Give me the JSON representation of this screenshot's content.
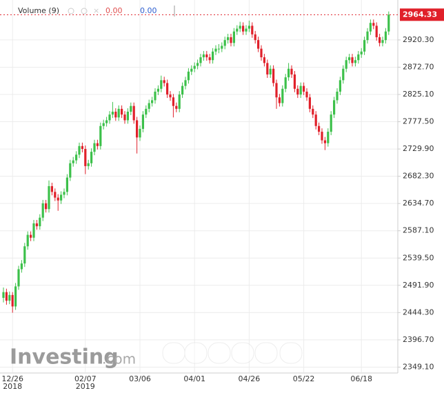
{
  "chart_data": {
    "type": "candlestick",
    "legend_label": "Volume (9)",
    "legend_values": [
      "0.00",
      "0.00"
    ],
    "legend_colors": [
      "#e05050",
      "#3060d0"
    ],
    "watermark": "Investing",
    "watermark_suffix": ".com",
    "up_color": "#3cc04a",
    "down_color": "#e0202a",
    "grid": true,
    "last_price": 2964.33,
    "ylim": [
      2340,
      2990
    ],
    "yticks": [
      {
        "value": 2349.1,
        "label": "2349.10"
      },
      {
        "value": 2396.7,
        "label": "2396.70"
      },
      {
        "value": 2444.3,
        "label": "2444.30"
      },
      {
        "value": 2491.9,
        "label": "2491.90"
      },
      {
        "value": 2539.5,
        "label": "2539.50"
      },
      {
        "value": 2587.1,
        "label": "2587.10"
      },
      {
        "value": 2634.7,
        "label": "2634.70"
      },
      {
        "value": 2682.3,
        "label": "2682.30"
      },
      {
        "value": 2729.9,
        "label": "2729.90"
      },
      {
        "value": 2777.5,
        "label": "2777.50"
      },
      {
        "value": 2825.1,
        "label": "2825.10"
      },
      {
        "value": 2872.7,
        "label": "2872.70"
      },
      {
        "value": 2920.3,
        "label": "2920.30"
      }
    ],
    "categories": [
      null,
      null,
      null,
      "12/26\n2018",
      null,
      null,
      null,
      null,
      null,
      null,
      null,
      null,
      null,
      null,
      null,
      null,
      null,
      null,
      null,
      null,
      null,
      null,
      null,
      null,
      null,
      null,
      null,
      "02/07\n2019",
      null,
      null,
      null,
      null,
      null,
      null,
      null,
      null,
      null,
      null,
      null,
      null,
      null,
      null,
      null,
      null,
      null,
      "03/06",
      null,
      null,
      null,
      null,
      null,
      null,
      null,
      null,
      null,
      null,
      null,
      null,
      null,
      null,
      null,
      null,
      null,
      "04/01",
      null,
      null,
      null,
      null,
      null,
      null,
      null,
      null,
      null,
      null,
      null,
      null,
      null,
      null,
      null,
      null,
      null,
      "04/26",
      null,
      null,
      null,
      null,
      null,
      null,
      null,
      null,
      null,
      null,
      null,
      null,
      null,
      null,
      null,
      null,
      null,
      "05/22",
      null,
      null,
      null,
      null,
      null,
      null,
      null,
      null,
      null,
      null,
      null,
      null,
      null,
      null,
      null,
      null,
      null,
      null,
      "06/18",
      null,
      null,
      null,
      null,
      null,
      null,
      null,
      null,
      null
    ],
    "ohlc": [
      [
        2470,
        2488,
        2462,
        2480
      ],
      [
        2480,
        2486,
        2458,
        2465
      ],
      [
        2465,
        2481,
        2459,
        2475
      ],
      [
        2475,
        2480,
        2444,
        2455
      ],
      [
        2455,
        2496,
        2449,
        2490
      ],
      [
        2490,
        2526,
        2484,
        2520
      ],
      [
        2520,
        2536,
        2514,
        2530
      ],
      [
        2530,
        2566,
        2524,
        2560
      ],
      [
        2560,
        2586,
        2554,
        2580
      ],
      [
        2580,
        2586,
        2569,
        2575
      ],
      [
        2575,
        2606,
        2569,
        2600
      ],
      [
        2600,
        2606,
        2589,
        2595
      ],
      [
        2595,
        2616,
        2589,
        2610
      ],
      [
        2610,
        2641,
        2604,
        2635
      ],
      [
        2635,
        2641,
        2619,
        2625
      ],
      [
        2625,
        2675,
        2619,
        2665
      ],
      [
        2665,
        2671,
        2649,
        2655
      ],
      [
        2655,
        2661,
        2639,
        2645
      ],
      [
        2645,
        2651,
        2622,
        2640
      ],
      [
        2640,
        2656,
        2634,
        2650
      ],
      [
        2650,
        2661,
        2644,
        2655
      ],
      [
        2655,
        2686,
        2649,
        2680
      ],
      [
        2680,
        2711,
        2674,
        2705
      ],
      [
        2705,
        2716,
        2699,
        2710
      ],
      [
        2710,
        2726,
        2704,
        2720
      ],
      [
        2720,
        2741,
        2714,
        2735
      ],
      [
        2735,
        2741,
        2724,
        2730
      ],
      [
        2730,
        2736,
        2686,
        2700
      ],
      [
        2700,
        2711,
        2694,
        2705
      ],
      [
        2705,
        2731,
        2699,
        2725
      ],
      [
        2725,
        2746,
        2719,
        2740
      ],
      [
        2740,
        2746,
        2729,
        2735
      ],
      [
        2735,
        2776,
        2729,
        2770
      ],
      [
        2770,
        2781,
        2764,
        2775
      ],
      [
        2775,
        2786,
        2769,
        2780
      ],
      [
        2780,
        2796,
        2774,
        2790
      ],
      [
        2790,
        2812,
        2784,
        2795
      ],
      [
        2795,
        2801,
        2779,
        2785
      ],
      [
        2785,
        2806,
        2779,
        2800
      ],
      [
        2800,
        2806,
        2784,
        2790
      ],
      [
        2790,
        2796,
        2774,
        2780
      ],
      [
        2780,
        2801,
        2774,
        2795
      ],
      [
        2795,
        2811,
        2789,
        2805
      ],
      [
        2805,
        2811,
        2774,
        2780
      ],
      [
        2780,
        2786,
        2722,
        2750
      ],
      [
        2750,
        2771,
        2744,
        2765
      ],
      [
        2765,
        2796,
        2759,
        2790
      ],
      [
        2790,
        2806,
        2784,
        2800
      ],
      [
        2800,
        2816,
        2794,
        2810
      ],
      [
        2810,
        2821,
        2804,
        2815
      ],
      [
        2815,
        2836,
        2809,
        2830
      ],
      [
        2830,
        2841,
        2824,
        2835
      ],
      [
        2835,
        2858,
        2829,
        2850
      ],
      [
        2850,
        2856,
        2839,
        2845
      ],
      [
        2845,
        2851,
        2819,
        2825
      ],
      [
        2825,
        2831,
        2814,
        2820
      ],
      [
        2820,
        2826,
        2785,
        2805
      ],
      [
        2805,
        2811,
        2794,
        2800
      ],
      [
        2800,
        2831,
        2794,
        2825
      ],
      [
        2825,
        2846,
        2819,
        2840
      ],
      [
        2840,
        2856,
        2834,
        2850
      ],
      [
        2850,
        2871,
        2844,
        2865
      ],
      [
        2865,
        2876,
        2859,
        2870
      ],
      [
        2870,
        2881,
        2864,
        2875
      ],
      [
        2875,
        2886,
        2869,
        2880
      ],
      [
        2880,
        2896,
        2874,
        2890
      ],
      [
        2890,
        2901,
        2884,
        2895
      ],
      [
        2895,
        2901,
        2884,
        2890
      ],
      [
        2890,
        2896,
        2879,
        2885
      ],
      [
        2885,
        2906,
        2879,
        2900
      ],
      [
        2900,
        2911,
        2894,
        2905
      ],
      [
        2905,
        2913,
        2897,
        2905
      ],
      [
        2905,
        2916,
        2899,
        2910
      ],
      [
        2910,
        2926,
        2904,
        2920
      ],
      [
        2920,
        2931,
        2914,
        2925
      ],
      [
        2925,
        2931,
        2909,
        2915
      ],
      [
        2915,
        2941,
        2909,
        2935
      ],
      [
        2935,
        2946,
        2929,
        2940
      ],
      [
        2940,
        2952,
        2934,
        2945
      ],
      [
        2945,
        2951,
        2929,
        2935
      ],
      [
        2935,
        2946,
        2929,
        2940
      ],
      [
        2940,
        2954,
        2934,
        2945
      ],
      [
        2945,
        2951,
        2924,
        2930
      ],
      [
        2930,
        2936,
        2914,
        2920
      ],
      [
        2920,
        2926,
        2899,
        2905
      ],
      [
        2905,
        2911,
        2884,
        2890
      ],
      [
        2890,
        2896,
        2874,
        2880
      ],
      [
        2880,
        2886,
        2854,
        2860
      ],
      [
        2860,
        2876,
        2854,
        2870
      ],
      [
        2870,
        2876,
        2839,
        2845
      ],
      [
        2845,
        2851,
        2800,
        2820
      ],
      [
        2820,
        2826,
        2804,
        2810
      ],
      [
        2810,
        2841,
        2804,
        2835
      ],
      [
        2835,
        2861,
        2829,
        2855
      ],
      [
        2855,
        2880,
        2849,
        2870
      ],
      [
        2870,
        2876,
        2854,
        2860
      ],
      [
        2860,
        2866,
        2829,
        2835
      ],
      [
        2835,
        2841,
        2819,
        2825
      ],
      [
        2825,
        2846,
        2819,
        2840
      ],
      [
        2840,
        2846,
        2824,
        2830
      ],
      [
        2830,
        2836,
        2814,
        2820
      ],
      [
        2820,
        2826,
        2794,
        2800
      ],
      [
        2800,
        2806,
        2784,
        2790
      ],
      [
        2790,
        2796,
        2764,
        2770
      ],
      [
        2770,
        2776,
        2754,
        2760
      ],
      [
        2760,
        2766,
        2739,
        2745
      ],
      [
        2745,
        2751,
        2728,
        2740
      ],
      [
        2740,
        2766,
        2734,
        2760
      ],
      [
        2760,
        2796,
        2754,
        2790
      ],
      [
        2790,
        2821,
        2784,
        2815
      ],
      [
        2815,
        2836,
        2809,
        2830
      ],
      [
        2830,
        2856,
        2824,
        2850
      ],
      [
        2850,
        2876,
        2844,
        2870
      ],
      [
        2870,
        2891,
        2864,
        2885
      ],
      [
        2885,
        2896,
        2879,
        2890
      ],
      [
        2890,
        2896,
        2874,
        2880
      ],
      [
        2880,
        2891,
        2874,
        2885
      ],
      [
        2885,
        2901,
        2879,
        2895
      ],
      [
        2895,
        2906,
        2889,
        2900
      ],
      [
        2900,
        2926,
        2894,
        2920
      ],
      [
        2920,
        2941,
        2914,
        2935
      ],
      [
        2935,
        2956,
        2929,
        2950
      ],
      [
        2950,
        2956,
        2939,
        2945
      ],
      [
        2945,
        2951,
        2919,
        2925
      ],
      [
        2925,
        2931,
        2909,
        2915
      ],
      [
        2915,
        2926,
        2909,
        2920
      ],
      [
        2920,
        2941,
        2914,
        2935
      ],
      [
        2935,
        2970,
        2929,
        2964.33
      ]
    ]
  }
}
